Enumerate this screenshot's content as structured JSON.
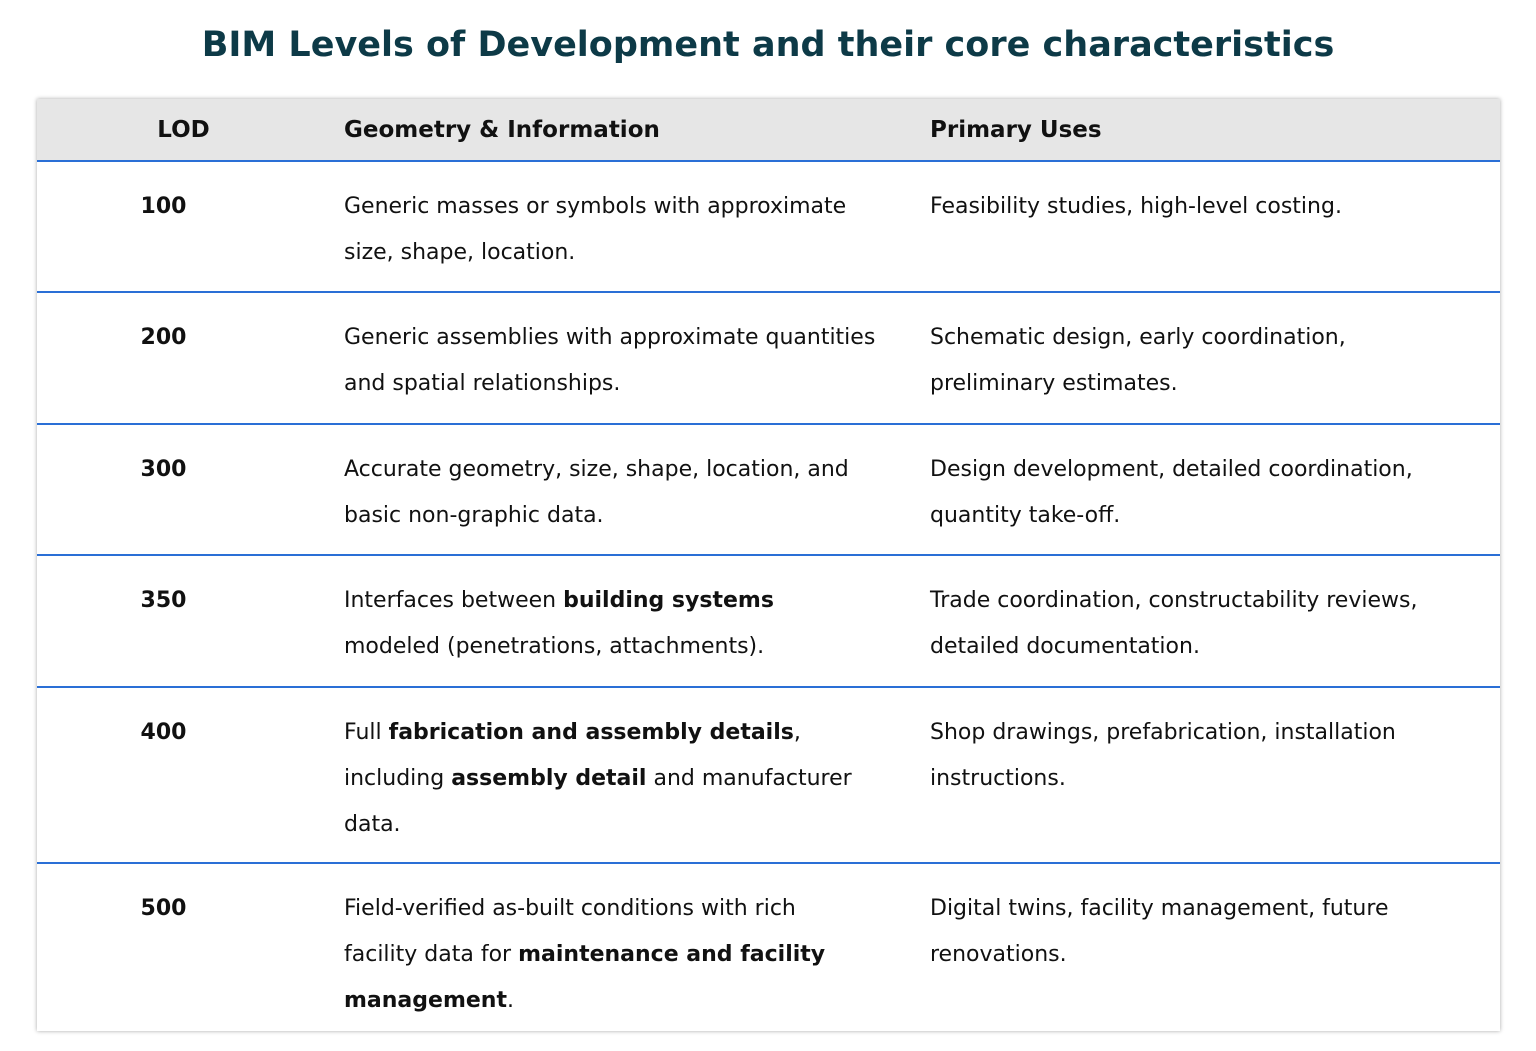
{
  "title": "BIM Levels of Development and their core characteristics",
  "table": {
    "header": [
      "LOD",
      "Geometry & Information",
      "Primary Uses"
    ],
    "rows": [
      {
        "lod": "100",
        "geometry": [
          {
            "text": "Generic masses or symbols with approximate size, shape, location."
          }
        ],
        "uses": [
          {
            "text": "Feasibility studies, high-level costing."
          }
        ]
      },
      {
        "lod": "200",
        "geometry": [
          {
            "text": "Generic assemblies with approximate quantities and spatial relationships."
          }
        ],
        "uses": [
          {
            "text": "Schematic design, early coordination, preliminary estimates."
          }
        ]
      },
      {
        "lod": "300",
        "geometry": [
          {
            "text": "Accurate geometry, size, shape, location, and basic non-graphic data."
          }
        ],
        "uses": [
          {
            "text": "Design development, detailed coordination, quantity take-off."
          }
        ]
      },
      {
        "lod": "350",
        "geometry": [
          {
            "text": "Interfaces between "
          },
          {
            "text": "building systems",
            "bold": true
          },
          {
            "text": " modeled (penetrations, attachments)."
          }
        ],
        "uses": [
          {
            "text": "Trade coordination, constructability reviews, detailed documentation."
          }
        ]
      },
      {
        "lod": "400",
        "geometry": [
          {
            "text": "Full "
          },
          {
            "text": "fabrication and assembly details",
            "bold": true
          },
          {
            "text": ", including "
          },
          {
            "text": "assembly detail",
            "bold": true
          },
          {
            "text": " and manufacturer data."
          }
        ],
        "uses": [
          {
            "text": "Shop drawings, prefabrication, installation instructions."
          }
        ]
      },
      {
        "lod": "500",
        "geometry": [
          {
            "text": "Field-verified as-built conditions with rich facility data for "
          },
          {
            "text": "maintenance and facility management",
            "bold": true
          },
          {
            "text": "."
          }
        ],
        "uses": [
          {
            "text": "Digital twins, facility management, future renovations."
          }
        ]
      }
    ]
  }
}
